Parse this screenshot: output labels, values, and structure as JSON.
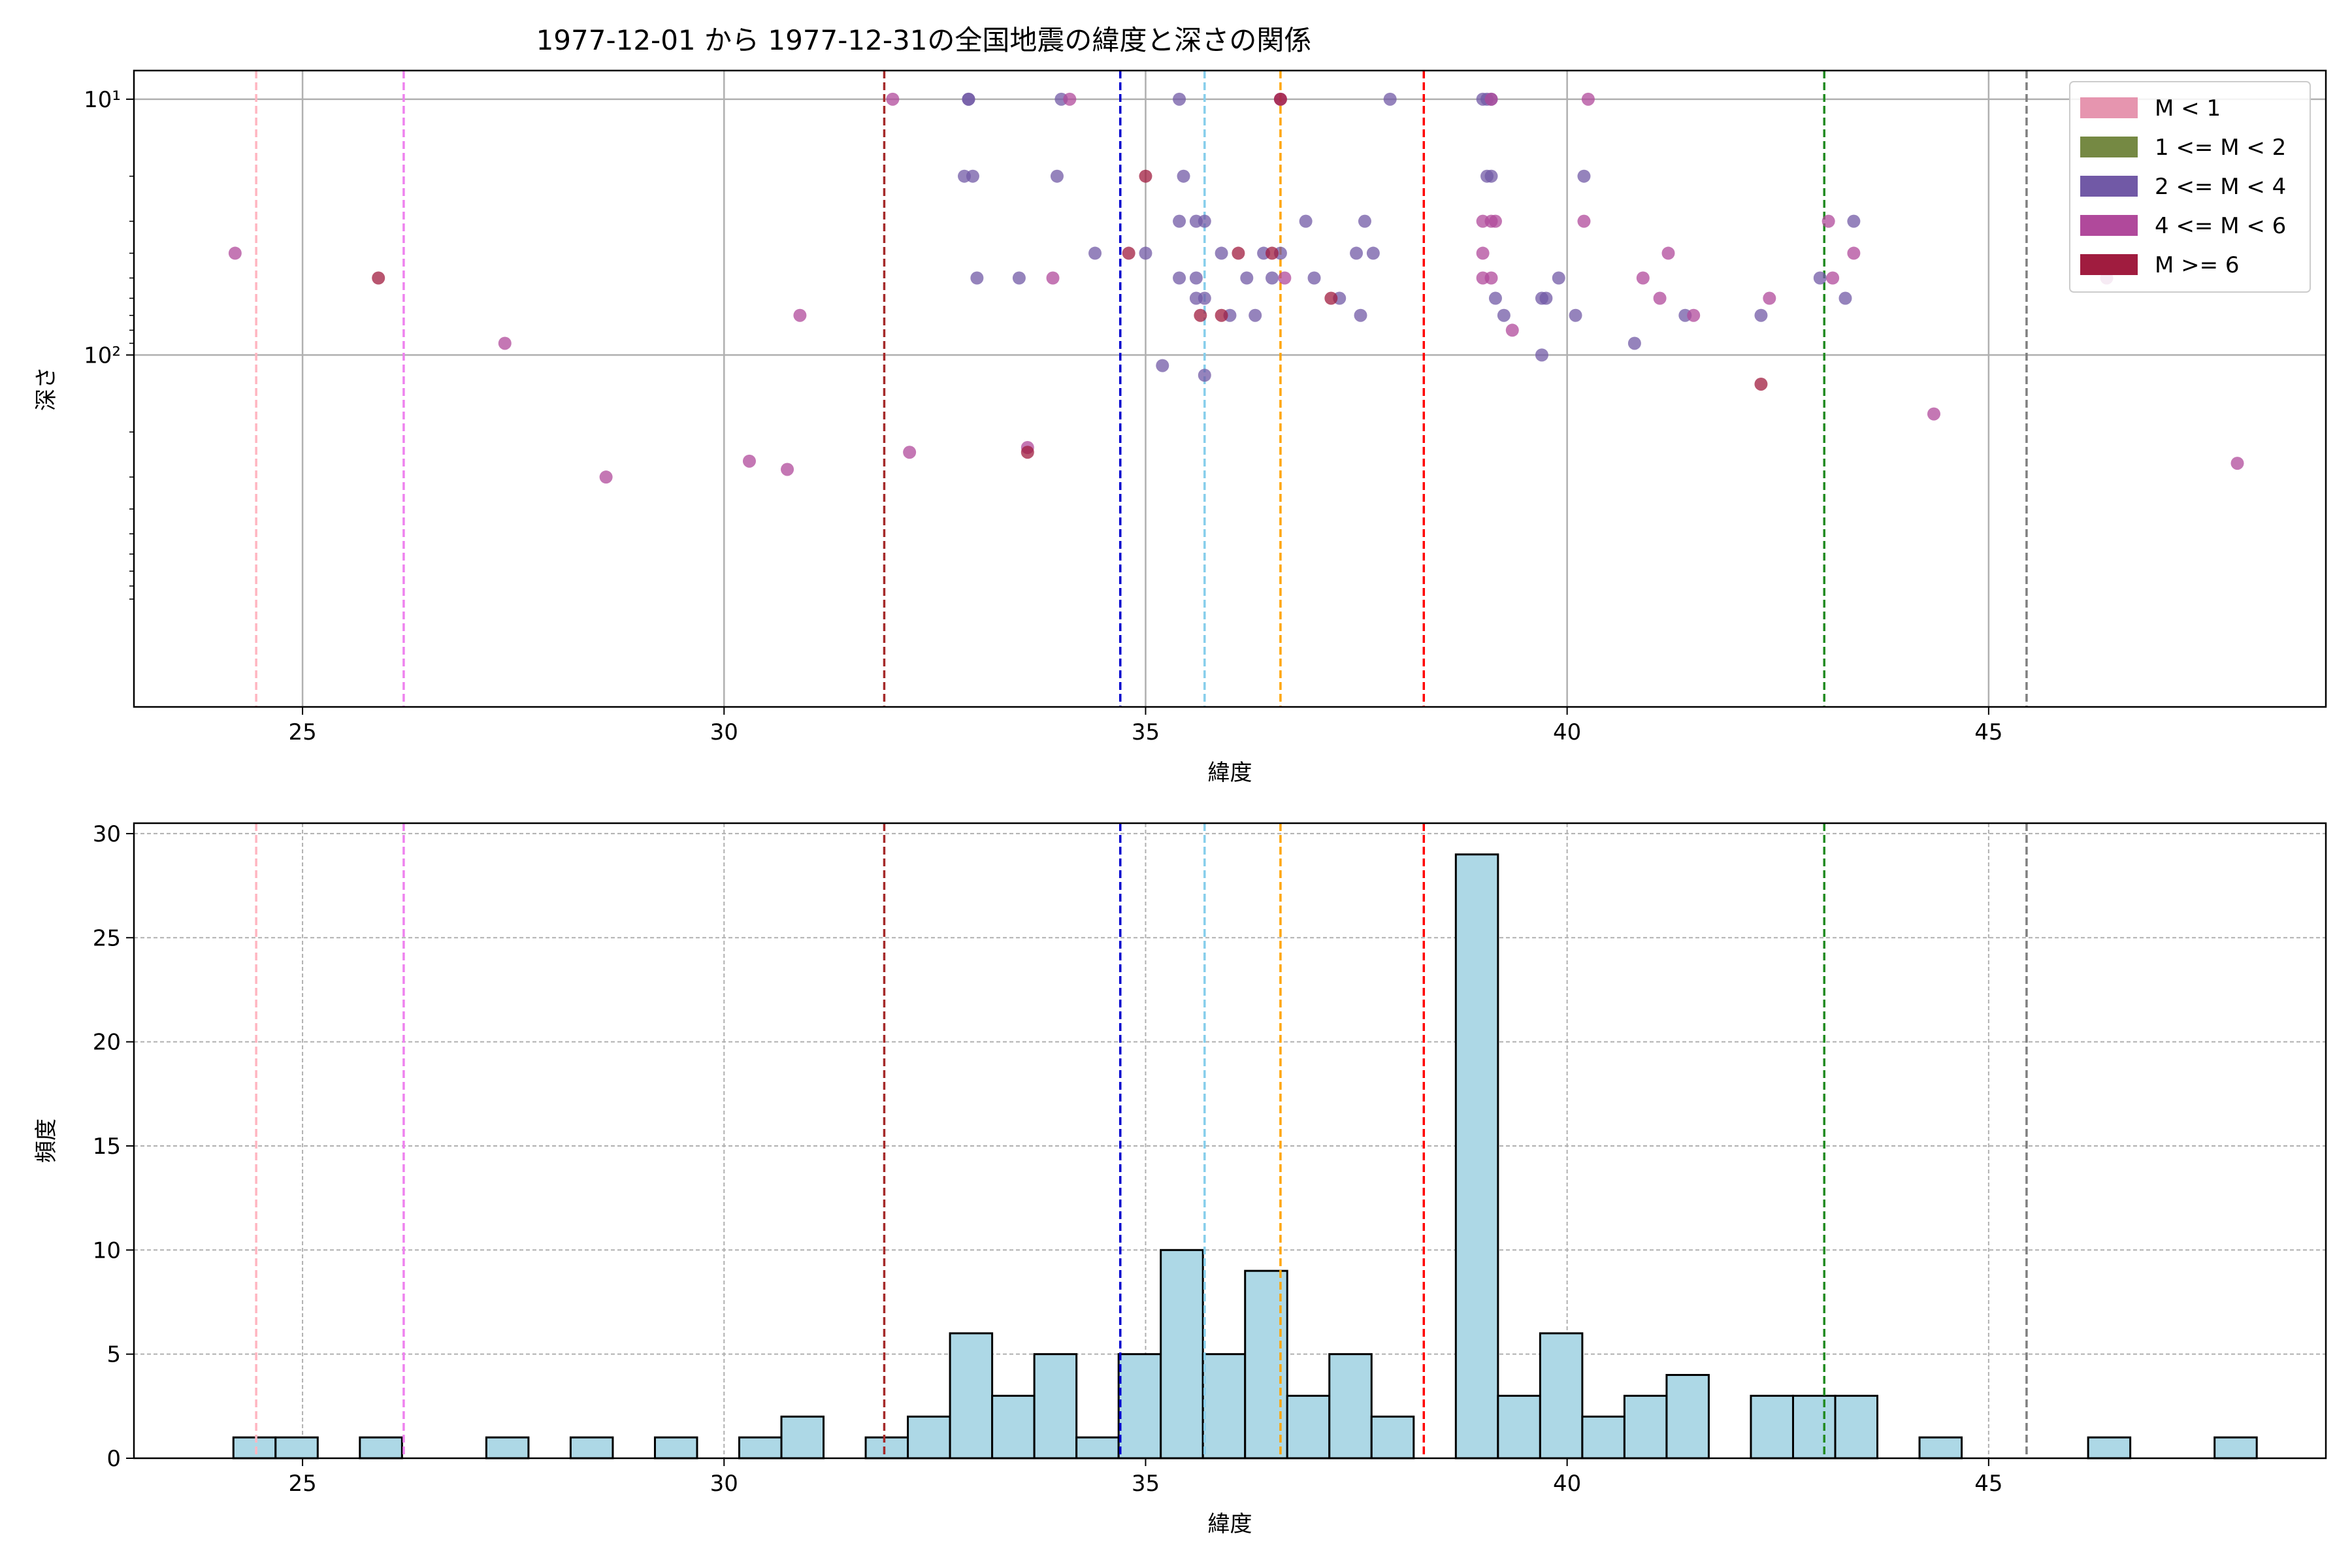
{
  "figure_title": "1977-12-01 から 1977-12-31の全国地震の緯度と深さの関係",
  "colors": {
    "m_lt1": "#E695AF",
    "m_1_2": "#758943",
    "m_2_4": "#7159A6",
    "m_4_6": "#B0499B",
    "m_ge6": "#A01C3F",
    "hist_fill": "#ADD8E6",
    "hist_edge": "#000000",
    "grid": "#b0b0b0"
  },
  "vlines": [
    {
      "x": 24.45,
      "color": "#FFB6C1"
    },
    {
      "x": 26.2,
      "color": "#EE82EE"
    },
    {
      "x": 31.9,
      "color": "#A52A2A"
    },
    {
      "x": 34.7,
      "color": "#0000CD"
    },
    {
      "x": 35.7,
      "color": "#87CEEB"
    },
    {
      "x": 36.6,
      "color": "#FFA500"
    },
    {
      "x": 38.3,
      "color": "#FF0000"
    },
    {
      "x": 43.05,
      "color": "#228B22"
    },
    {
      "x": 45.45,
      "color": "#808080"
    }
  ],
  "chart_data": [
    {
      "type": "scatter",
      "title": "1977-12-01 から 1977-12-31の全国地震の緯度と深さの関係",
      "xlabel": "緯度",
      "ylabel": "深さ",
      "xlim": [
        23.0,
        49.0
      ],
      "ylim_inverted_log": [
        10,
        2000
      ],
      "yscale": "log",
      "x_ticks": [
        "25",
        "30",
        "35",
        "40",
        "45"
      ],
      "y_ticks": [
        "10¹",
        "10²"
      ],
      "grid": true,
      "legend_position": "top-right",
      "legend": [
        "M < 1",
        "1 <= M < 2",
        "2 <= M < 4",
        "4 <= M < 6",
        "M >= 6"
      ],
      "series": [
        {
          "name": "2 <= M < 4",
          "color_key": "m_2_4",
          "points": [
            [
              32.9,
              10
            ],
            [
              32.9,
              10
            ],
            [
              34.0,
              10
            ],
            [
              35.4,
              10
            ],
            [
              37.9,
              10
            ],
            [
              39.0,
              10
            ],
            [
              39.05,
              10
            ],
            [
              39.1,
              10
            ],
            [
              32.85,
              20
            ],
            [
              32.95,
              20
            ],
            [
              33.95,
              20
            ],
            [
              35.45,
              20
            ],
            [
              39.05,
              20
            ],
            [
              39.1,
              20
            ],
            [
              40.2,
              20
            ],
            [
              35.4,
              30
            ],
            [
              35.6,
              30
            ],
            [
              35.7,
              30
            ],
            [
              36.9,
              30
            ],
            [
              37.6,
              30
            ],
            [
              43.4,
              30
            ],
            [
              34.4,
              40
            ],
            [
              35.0,
              40
            ],
            [
              35.9,
              40
            ],
            [
              36.4,
              40
            ],
            [
              36.6,
              40
            ],
            [
              37.5,
              40
            ],
            [
              37.7,
              40
            ],
            [
              33.0,
              50
            ],
            [
              33.5,
              50
            ],
            [
              35.4,
              50
            ],
            [
              35.6,
              50
            ],
            [
              36.2,
              50
            ],
            [
              36.5,
              50
            ],
            [
              37.0,
              50
            ],
            [
              39.9,
              50
            ],
            [
              43.0,
              50
            ],
            [
              35.6,
              60
            ],
            [
              35.7,
              60
            ],
            [
              37.3,
              60
            ],
            [
              39.15,
              60
            ],
            [
              39.7,
              60
            ],
            [
              39.75,
              60
            ],
            [
              43.3,
              60
            ],
            [
              36.0,
              70
            ],
            [
              36.3,
              70
            ],
            [
              37.55,
              70
            ],
            [
              39.25,
              70
            ],
            [
              40.1,
              70
            ],
            [
              41.4,
              70
            ],
            [
              42.3,
              70
            ],
            [
              40.8,
              90
            ],
            [
              39.7,
              100
            ],
            [
              35.2,
              110
            ],
            [
              35.7,
              120
            ]
          ]
        },
        {
          "name": "4 <= M < 6",
          "color_key": "m_4_6",
          "points": [
            [
              32.0,
              10
            ],
            [
              34.1,
              10
            ],
            [
              36.6,
              10
            ],
            [
              39.1,
              10
            ],
            [
              40.25,
              10
            ],
            [
              24.2,
              40
            ],
            [
              39.0,
              40
            ],
            [
              39.1,
              30
            ],
            [
              39.0,
              30
            ],
            [
              39.15,
              30
            ],
            [
              40.2,
              30
            ],
            [
              43.1,
              30
            ],
            [
              39.0,
              50
            ],
            [
              39.1,
              50
            ],
            [
              36.65,
              50
            ],
            [
              33.9,
              50
            ],
            [
              40.9,
              50
            ],
            [
              43.15,
              50
            ],
            [
              46.4,
              50
            ],
            [
              41.2,
              40
            ],
            [
              43.4,
              40
            ],
            [
              41.1,
              60
            ],
            [
              42.4,
              60
            ],
            [
              30.9,
              70
            ],
            [
              41.5,
              70
            ],
            [
              39.35,
              80
            ],
            [
              27.4,
              90
            ],
            [
              44.35,
              170
            ],
            [
              33.6,
              230
            ],
            [
              32.2,
              240
            ],
            [
              30.3,
              260
            ],
            [
              30.75,
              280
            ],
            [
              28.6,
              300
            ],
            [
              47.95,
              265
            ]
          ]
        },
        {
          "name": "M >= 6",
          "color_key": "m_ge6",
          "points": [
            [
              36.6,
              10
            ],
            [
              35.0,
              20
            ],
            [
              34.8,
              40
            ],
            [
              36.1,
              40
            ],
            [
              36.5,
              40
            ],
            [
              25.9,
              50
            ],
            [
              37.2,
              60
            ],
            [
              35.65,
              70
            ],
            [
              35.9,
              70
            ],
            [
              42.3,
              130
            ],
            [
              33.6,
              240
            ]
          ]
        }
      ]
    },
    {
      "type": "bar",
      "title": "",
      "xlabel": "緯度",
      "ylabel": "頻度",
      "xlim": [
        23.0,
        49.0
      ],
      "ylim": [
        0,
        30.5
      ],
      "x_ticks": [
        "25",
        "30",
        "35",
        "40",
        "45"
      ],
      "y_ticks": [
        "0",
        "5",
        "10",
        "15",
        "20",
        "25",
        "30"
      ],
      "grid": true,
      "bins": [
        {
          "x0": 24.18,
          "x1": 24.68,
          "count": 1
        },
        {
          "x0": 24.68,
          "x1": 25.18,
          "count": 1
        },
        {
          "x0": 25.68,
          "x1": 26.18,
          "count": 1
        },
        {
          "x0": 27.18,
          "x1": 27.68,
          "count": 1
        },
        {
          "x0": 28.18,
          "x1": 28.68,
          "count": 1
        },
        {
          "x0": 29.18,
          "x1": 29.68,
          "count": 1
        },
        {
          "x0": 30.18,
          "x1": 30.68,
          "count": 1
        },
        {
          "x0": 30.68,
          "x1": 31.18,
          "count": 2
        },
        {
          "x0": 31.68,
          "x1": 32.18,
          "count": 1
        },
        {
          "x0": 32.18,
          "x1": 32.68,
          "count": 2
        },
        {
          "x0": 32.68,
          "x1": 33.18,
          "count": 6
        },
        {
          "x0": 33.18,
          "x1": 33.68,
          "count": 3
        },
        {
          "x0": 33.68,
          "x1": 34.18,
          "count": 5
        },
        {
          "x0": 34.18,
          "x1": 34.68,
          "count": 1
        },
        {
          "x0": 34.68,
          "x1": 35.18,
          "count": 5
        },
        {
          "x0": 35.18,
          "x1": 35.68,
          "count": 10
        },
        {
          "x0": 35.68,
          "x1": 36.18,
          "count": 5
        },
        {
          "x0": 36.18,
          "x1": 36.68,
          "count": 9
        },
        {
          "x0": 36.68,
          "x1": 37.18,
          "count": 3
        },
        {
          "x0": 37.18,
          "x1": 37.68,
          "count": 5
        },
        {
          "x0": 37.68,
          "x1": 38.18,
          "count": 2
        },
        {
          "x0": 38.68,
          "x1": 39.18,
          "count": 29
        },
        {
          "x0": 39.18,
          "x1": 39.68,
          "count": 3
        },
        {
          "x0": 39.68,
          "x1": 40.18,
          "count": 6
        },
        {
          "x0": 40.18,
          "x1": 40.68,
          "count": 2
        },
        {
          "x0": 40.68,
          "x1": 41.18,
          "count": 3
        },
        {
          "x0": 41.18,
          "x1": 41.68,
          "count": 4
        },
        {
          "x0": 42.18,
          "x1": 42.68,
          "count": 3
        },
        {
          "x0": 42.68,
          "x1": 43.18,
          "count": 3
        },
        {
          "x0": 43.18,
          "x1": 43.68,
          "count": 3
        },
        {
          "x0": 44.18,
          "x1": 44.68,
          "count": 1
        },
        {
          "x0": 46.18,
          "x1": 46.68,
          "count": 1
        },
        {
          "x0": 47.68,
          "x1": 48.18,
          "count": 1
        }
      ]
    }
  ]
}
